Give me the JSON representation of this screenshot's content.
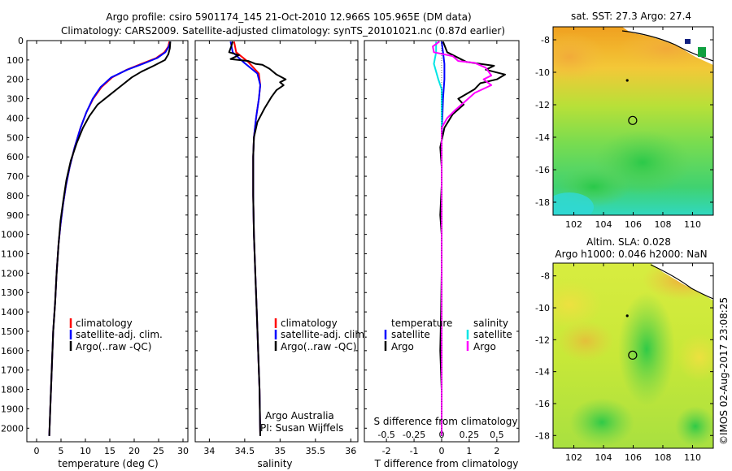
{
  "header": {
    "line1": "Argo profile: csiro 5901174_145 21-Oct-2010 12.966S 105.965E (DM data)",
    "line2": "Climatology: CARS2009. Satellite-adjusted climatology: synTS_20101021.nc (0.87d earlier)"
  },
  "colors": {
    "climatology": "#ff0000",
    "satellite": "#0000ff",
    "argo": "#000000",
    "sat_diff": "#00e5e5",
    "argo_s_diff": "#ff00ff"
  },
  "chart_data": [
    {
      "type": "line",
      "id": "temperature",
      "xlabel": "temperature (deg C)",
      "xlim": [
        -2,
        31
      ],
      "xticks": [
        0,
        5,
        10,
        15,
        20,
        25,
        30
      ],
      "ylim": [
        0,
        2070
      ],
      "yticks": [
        0,
        100,
        200,
        300,
        400,
        500,
        600,
        700,
        800,
        900,
        1000,
        1100,
        1200,
        1300,
        1400,
        1500,
        1600,
        1700,
        1800,
        1900,
        2000
      ],
      "legend": [
        "climatology",
        "satellite-adj. clim.",
        "Argo(..raw -QC)"
      ],
      "series": [
        {
          "name": "climatology",
          "color": "#ff0000",
          "points": [
            [
              27.2,
              5
            ],
            [
              27.0,
              30
            ],
            [
              26.2,
              60
            ],
            [
              24.5,
              90
            ],
            [
              21.5,
              120
            ],
            [
              18.5,
              150
            ],
            [
              15.5,
              190
            ],
            [
              13.3,
              240
            ],
            [
              11.6,
              300
            ],
            [
              10.2,
              370
            ],
            [
              9.0,
              450
            ],
            [
              7.8,
              550
            ],
            [
              6.8,
              650
            ],
            [
              6.0,
              750
            ],
            [
              5.4,
              850
            ],
            [
              4.9,
              950
            ],
            [
              4.5,
              1050
            ],
            [
              4.1,
              1200
            ],
            [
              3.8,
              1350
            ],
            [
              3.4,
              1500
            ],
            [
              3.1,
              1700
            ],
            [
              2.8,
              1900
            ],
            [
              2.6,
              2040
            ]
          ]
        },
        {
          "name": "satellite-adj. clim.",
          "color": "#0000ff",
          "points": [
            [
              27.4,
              5
            ],
            [
              27.1,
              30
            ],
            [
              26.4,
              60
            ],
            [
              24.7,
              90
            ],
            [
              21.8,
              120
            ],
            [
              18.6,
              150
            ],
            [
              15.3,
              190
            ],
            [
              13.1,
              240
            ],
            [
              11.5,
              300
            ],
            [
              10.2,
              370
            ],
            [
              9.0,
              450
            ],
            [
              7.8,
              550
            ],
            [
              6.8,
              650
            ],
            [
              6.0,
              750
            ],
            [
              5.4,
              850
            ],
            [
              4.9,
              950
            ],
            [
              4.5,
              1050
            ],
            [
              4.1,
              1200
            ],
            [
              3.8,
              1350
            ],
            [
              3.4,
              1500
            ],
            [
              3.1,
              1700
            ],
            [
              2.8,
              1900
            ],
            [
              2.6,
              2040
            ]
          ]
        },
        {
          "name": "Argo(..raw -QC)",
          "color": "#000000",
          "points": [
            [
              27.4,
              5
            ],
            [
              27.3,
              40
            ],
            [
              27.0,
              70
            ],
            [
              26.3,
              100
            ],
            [
              24.0,
              130
            ],
            [
              21.5,
              160
            ],
            [
              19.5,
              190
            ],
            [
              17.5,
              230
            ],
            [
              15.0,
              280
            ],
            [
              12.5,
              330
            ],
            [
              10.8,
              390
            ],
            [
              9.5,
              450
            ],
            [
              8.2,
              530
            ],
            [
              7.0,
              620
            ],
            [
              6.1,
              720
            ],
            [
              5.5,
              820
            ],
            [
              4.9,
              930
            ],
            [
              4.5,
              1050
            ],
            [
              4.1,
              1200
            ],
            [
              3.8,
              1350
            ],
            [
              3.4,
              1500
            ],
            [
              3.1,
              1700
            ],
            [
              2.8,
              1900
            ],
            [
              2.6,
              2040
            ]
          ]
        }
      ]
    },
    {
      "type": "line",
      "id": "salinity",
      "xlabel": "salinity",
      "xlim": [
        33.8,
        36.1
      ],
      "xticks": [
        34,
        34.5,
        35,
        35.5,
        36
      ],
      "ylim": [
        0,
        2070
      ],
      "legend": [
        "climatology",
        "satellite-adj. clim.",
        "Argo(..raw -QC)"
      ],
      "annotation": [
        "Argo Australia",
        "PI: Susan Wijffels"
      ],
      "series": [
        {
          "name": "climatology",
          "color": "#ff0000",
          "points": [
            [
              34.35,
              5
            ],
            [
              34.38,
              60
            ],
            [
              34.55,
              110
            ],
            [
              34.7,
              170
            ],
            [
              34.72,
              230
            ],
            [
              34.7,
              300
            ],
            [
              34.66,
              400
            ],
            [
              34.63,
              500
            ],
            [
              34.62,
              600
            ],
            [
              34.62,
              800
            ],
            [
              34.63,
              1000
            ],
            [
              34.65,
              1200
            ],
            [
              34.67,
              1400
            ],
            [
              34.69,
              1600
            ],
            [
              34.71,
              1800
            ],
            [
              34.72,
              2040
            ]
          ]
        },
        {
          "name": "satellite-adj. clim.",
          "color": "#0000ff",
          "points": [
            [
              34.3,
              5
            ],
            [
              34.33,
              60
            ],
            [
              34.48,
              110
            ],
            [
              34.68,
              170
            ],
            [
              34.72,
              230
            ],
            [
              34.7,
              300
            ],
            [
              34.66,
              400
            ],
            [
              34.63,
              500
            ],
            [
              34.62,
              600
            ],
            [
              34.62,
              800
            ],
            [
              34.63,
              1000
            ],
            [
              34.65,
              1200
            ],
            [
              34.67,
              1400
            ],
            [
              34.69,
              1600
            ],
            [
              34.71,
              1800
            ],
            [
              34.72,
              2040
            ]
          ]
        },
        {
          "name": "Argo(..raw -QC)",
          "color": "#000000",
          "points": [
            [
              34.33,
              5
            ],
            [
              34.31,
              30
            ],
            [
              34.28,
              60
            ],
            [
              34.42,
              75
            ],
            [
              34.3,
              95
            ],
            [
              34.55,
              105
            ],
            [
              34.65,
              120
            ],
            [
              34.75,
              125
            ],
            [
              34.85,
              145
            ],
            [
              34.95,
              175
            ],
            [
              35.08,
              200
            ],
            [
              35.0,
              215
            ],
            [
              35.05,
              230
            ],
            [
              34.95,
              255
            ],
            [
              34.88,
              290
            ],
            [
              34.78,
              350
            ],
            [
              34.68,
              420
            ],
            [
              34.63,
              500
            ],
            [
              34.62,
              600
            ],
            [
              34.62,
              800
            ],
            [
              34.63,
              1000
            ],
            [
              34.65,
              1200
            ],
            [
              34.67,
              1400
            ],
            [
              34.69,
              1600
            ],
            [
              34.71,
              1800
            ],
            [
              34.72,
              2040
            ]
          ]
        }
      ]
    },
    {
      "type": "line",
      "id": "differences",
      "xlabel": "T difference from climatology",
      "xlim": [
        -2.8,
        2.8
      ],
      "xticks": [
        -2,
        -1,
        0,
        1,
        2
      ],
      "s_label": "S difference from climatology",
      "s_xlim": [
        -0.7,
        0.7
      ],
      "s_xticks": [
        -0.5,
        -0.25,
        0,
        0.25,
        0.5
      ],
      "s_tick_labels": [
        "-0.5",
        "-0.25",
        "0",
        "0.25",
        "0.5"
      ],
      "ylim": [
        0,
        2070
      ],
      "legend": {
        "temperature": "temperature",
        "salinity": "salinity",
        "satellite": "satellite",
        "argo": "Argo"
      },
      "series": [
        {
          "name": "T satellite",
          "color": "#0000ff",
          "axis": "T",
          "points": [
            [
              0,
              5
            ],
            [
              0.05,
              60
            ],
            [
              0.1,
              120
            ],
            [
              0.1,
              200
            ],
            [
              0.05,
              300
            ],
            [
              0,
              500
            ],
            [
              0,
              1000
            ],
            [
              0,
              2040
            ]
          ]
        },
        {
          "name": "T Argo",
          "color": "#000000",
          "axis": "T",
          "points": [
            [
              0.05,
              5
            ],
            [
              0.2,
              60
            ],
            [
              0.9,
              110
            ],
            [
              1.9,
              130
            ],
            [
              1.6,
              150
            ],
            [
              2.3,
              175
            ],
            [
              2.0,
              200
            ],
            [
              1.4,
              220
            ],
            [
              1.2,
              250
            ],
            [
              0.6,
              300
            ],
            [
              0.8,
              330
            ],
            [
              0.4,
              380
            ],
            [
              0.1,
              450
            ],
            [
              -0.05,
              550
            ],
            [
              0,
              650
            ],
            [
              0,
              750
            ],
            [
              -0.05,
              900
            ],
            [
              0,
              1000
            ],
            [
              0,
              1200
            ],
            [
              -0.02,
              1400
            ],
            [
              -0.05,
              1600
            ],
            [
              0,
              1800
            ],
            [
              0,
              2040
            ]
          ]
        },
        {
          "name": "S satellite",
          "color": "#00e5e5",
          "axis": "S",
          "points": [
            [
              -0.05,
              5
            ],
            [
              -0.05,
              60
            ],
            [
              -0.07,
              120
            ],
            [
              -0.03,
              200
            ],
            [
              0,
              250
            ],
            [
              0,
              400
            ],
            [
              0,
              600
            ],
            [
              0,
              1000
            ],
            [
              0,
              1500
            ],
            [
              0,
              2040
            ]
          ]
        },
        {
          "name": "S Argo",
          "color": "#ff00ff",
          "axis": "S",
          "points": [
            [
              -0.02,
              5
            ],
            [
              -0.08,
              30
            ],
            [
              -0.07,
              60
            ],
            [
              0.1,
              80
            ],
            [
              0.15,
              105
            ],
            [
              0.3,
              115
            ],
            [
              0.4,
              140
            ],
            [
              0.45,
              180
            ],
            [
              0.38,
              200
            ],
            [
              0.45,
              230
            ],
            [
              0.3,
              270
            ],
            [
              0.22,
              310
            ],
            [
              0.12,
              360
            ],
            [
              0.05,
              400
            ],
            [
              0,
              450
            ],
            [
              0,
              600
            ],
            [
              0,
              1000
            ],
            [
              0,
              1500
            ],
            [
              0,
              2040
            ]
          ]
        }
      ]
    }
  ],
  "maps": [
    {
      "title": "sat. SST: 27.3 Argo: 27.4",
      "xticks": [
        102,
        104,
        106,
        108,
        110
      ],
      "yticks": [
        -8,
        -10,
        -12,
        -14,
        -16,
        -18
      ],
      "xlim": [
        100.6,
        111.4
      ],
      "ylim": [
        -18.8,
        -7.2
      ],
      "marker_lon": 105.965,
      "marker_lat": -12.966,
      "dot_lon": 105.6,
      "dot_lat": -10.5
    },
    {
      "title": "Altim. SLA: 0.028",
      "subtitle": "Argo h1000: 0.046 h2000: NaN",
      "xticks": [
        102,
        104,
        106,
        108,
        110
      ],
      "yticks": [
        -8,
        -10,
        -12,
        -14,
        -16,
        -18
      ],
      "xlim": [
        100.6,
        111.4
      ],
      "ylim": [
        -18.8,
        -7.2
      ],
      "marker_lon": 105.965,
      "marker_lat": -12.966,
      "dot_lon": 105.6,
      "dot_lat": -10.5
    }
  ],
  "credit": "©IMOS 02-Aug-2017 23:08:25"
}
